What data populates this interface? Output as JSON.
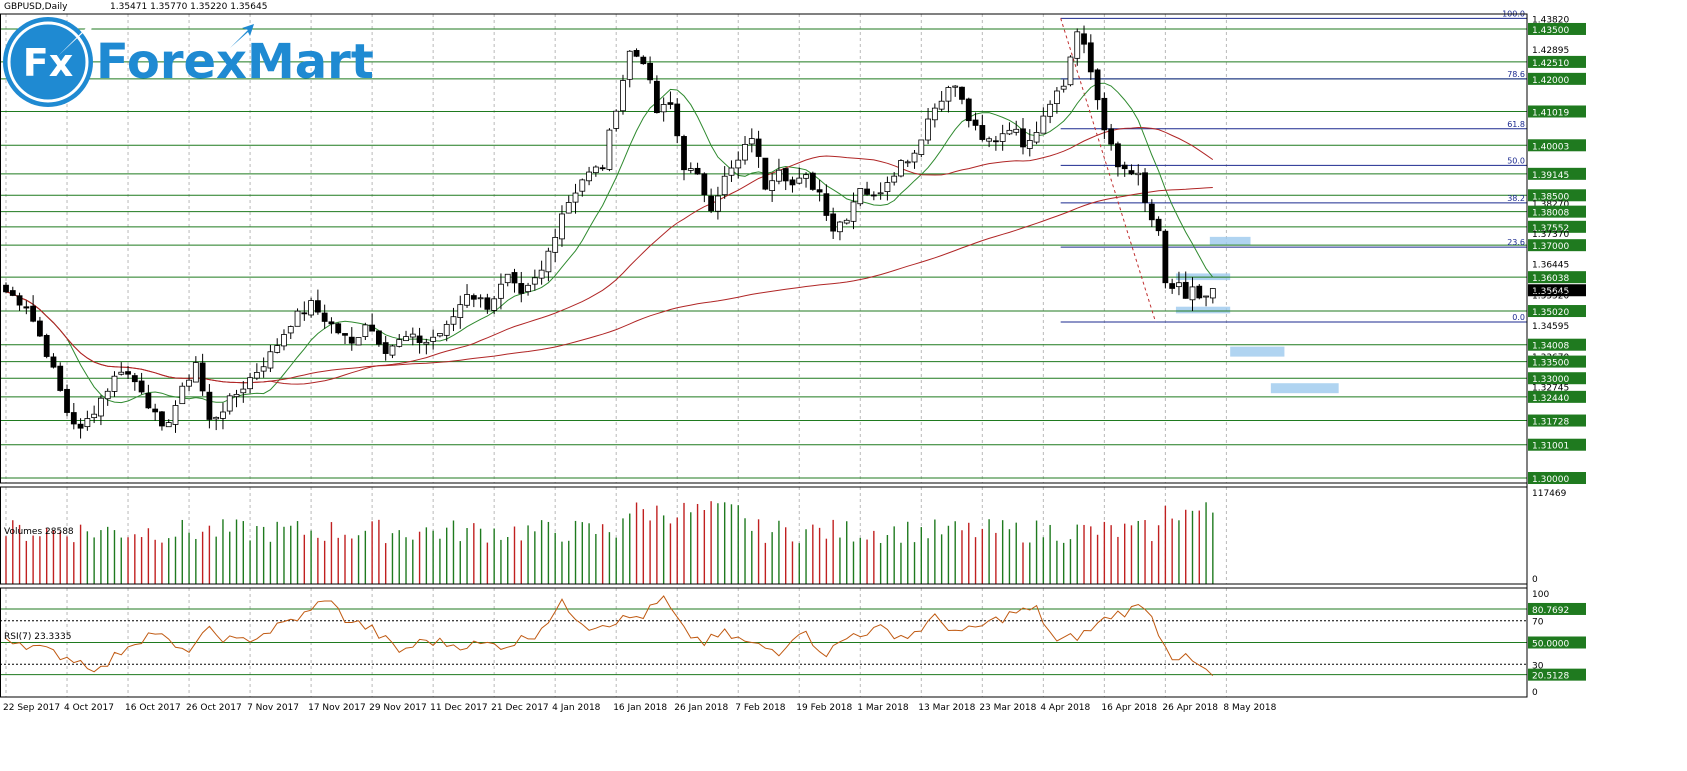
{
  "header": {
    "symbol": "GBPUSD,Daily",
    "ohlc": "1.35471 1.35770 1.35220 1.35645"
  },
  "logo": {
    "text": "ForexMart",
    "badge": "Fx"
  },
  "colors": {
    "background": "#ffffff",
    "grid": "#b9b9b9",
    "candle": "#000000",
    "sr_line": "#1f7a1f",
    "fib": "#1b2a8f",
    "ma_fast": "#2f8a2f",
    "ma_slow": "#b02626",
    "vol_up": "#1f7a1f",
    "vol_down": "#c02020",
    "rsi": "#c05a12",
    "zone": "#9cc9ee",
    "brand": "#1f8ad2"
  },
  "chart_data": [
    {
      "type": "line",
      "title": "GBPUSD,Daily",
      "subtitle": "1.35471 1.35770 1.35220 1.35645",
      "ylim": [
        1.2985,
        1.4395
      ],
      "x_tick_labels": [
        "22 Sep 2017",
        "4 Oct 2017",
        "16 Oct 2017",
        "26 Oct 2017",
        "7 Nov 2017",
        "17 Nov 2017",
        "29 Nov 2017",
        "11 Dec 2017",
        "21 Dec 2017",
        "4 Jan 2018",
        "16 Jan 2018",
        "26 Jan 2018",
        "7 Feb 2018",
        "19 Feb 2018",
        "1 Mar 2018",
        "13 Mar 2018",
        "23 Mar 2018",
        "4 Apr 2018",
        "16 Apr 2018",
        "26 Apr 2018",
        "8 May 2018"
      ],
      "close_series_anchors": [
        [
          0,
          1.356
        ],
        [
          3,
          1.352
        ],
        [
          6,
          1.338
        ],
        [
          9,
          1.32
        ],
        [
          11,
          1.314
        ],
        [
          14,
          1.324
        ],
        [
          17,
          1.333
        ],
        [
          20,
          1.327
        ],
        [
          23,
          1.314
        ],
        [
          26,
          1.326
        ],
        [
          28,
          1.335
        ],
        [
          30,
          1.317
        ],
        [
          33,
          1.323
        ],
        [
          36,
          1.33
        ],
        [
          39,
          1.337
        ],
        [
          42,
          1.347
        ],
        [
          45,
          1.352
        ],
        [
          48,
          1.346
        ],
        [
          51,
          1.34
        ],
        [
          53,
          1.347
        ],
        [
          56,
          1.339
        ],
        [
          59,
          1.342
        ],
        [
          62,
          1.341
        ],
        [
          65,
          1.345
        ],
        [
          68,
          1.356
        ],
        [
          71,
          1.352
        ],
        [
          74,
          1.36
        ],
        [
          76,
          1.354
        ],
        [
          79,
          1.362
        ],
        [
          82,
          1.38
        ],
        [
          85,
          1.39
        ],
        [
          88,
          1.394
        ],
        [
          90,
          1.412
        ],
        [
          92,
          1.428
        ],
        [
          94,
          1.426
        ],
        [
          96,
          1.41
        ],
        [
          98,
          1.412
        ],
        [
          100,
          1.394
        ],
        [
          102,
          1.39
        ],
        [
          104,
          1.382
        ],
        [
          106,
          1.39
        ],
        [
          108,
          1.395
        ],
        [
          110,
          1.403
        ],
        [
          112,
          1.388
        ],
        [
          114,
          1.394
        ],
        [
          116,
          1.388
        ],
        [
          118,
          1.39
        ],
        [
          120,
          1.386
        ],
        [
          122,
          1.375
        ],
        [
          124,
          1.379
        ],
        [
          126,
          1.388
        ],
        [
          128,
          1.384
        ],
        [
          130,
          1.39
        ],
        [
          132,
          1.395
        ],
        [
          134,
          1.398
        ],
        [
          136,
          1.408
        ],
        [
          138,
          1.415
        ],
        [
          140,
          1.418
        ],
        [
          142,
          1.408
        ],
        [
          144,
          1.401
        ],
        [
          146,
          1.402
        ],
        [
          148,
          1.406
        ],
        [
          150,
          1.401
        ],
        [
          152,
          1.405
        ],
        [
          154,
          1.414
        ],
        [
          156,
          1.418
        ],
        [
          157,
          1.427
        ],
        [
          158,
          1.434
        ],
        [
          159,
          1.429
        ],
        [
          160,
          1.422
        ],
        [
          161,
          1.414
        ],
        [
          162,
          1.406
        ],
        [
          163,
          1.399
        ],
        [
          164,
          1.393
        ],
        [
          165,
          1.393
        ],
        [
          166,
          1.39
        ],
        [
          167,
          1.391
        ],
        [
          168,
          1.383
        ],
        [
          169,
          1.376
        ],
        [
          170,
          1.373
        ],
        [
          171,
          1.359
        ],
        [
          172,
          1.357
        ],
        [
          173,
          1.358
        ],
        [
          174,
          1.353
        ],
        [
          175,
          1.356
        ],
        [
          176,
          1.354
        ],
        [
          177,
          1.353
        ],
        [
          178,
          1.3565
        ]
      ],
      "horizontal_levels": [
        1.435,
        1.4251,
        1.42,
        1.41019,
        1.40003,
        1.39145,
        1.385,
        1.38008,
        1.37552,
        1.37,
        1.36038,
        1.3502,
        1.34008,
        1.335,
        1.33,
        1.3244,
        1.31728,
        1.31001,
        1.3
      ],
      "price_axis_labels": [
        "1.43820",
        "1.43500",
        "1.42895",
        "1.42510",
        "1.42000",
        "1.41019",
        "1.40003",
        "1.39145",
        "1.38500",
        "1.38270",
        "1.38008",
        "1.37552",
        "1.37370",
        "1.37000",
        "1.36445",
        "1.36038",
        "1.35645",
        "1.35520",
        "1.35020",
        "1.34595",
        "1.34008",
        "1.33670",
        "1.33500",
        "1.33000",
        "1.32745",
        "1.32440",
        "1.31728",
        "1.31001",
        "1.30000"
      ],
      "highlighted_labels": [
        "1.43500",
        "1.42510",
        "1.42000",
        "1.41019",
        "1.40003",
        "1.39145",
        "1.38500",
        "1.38008",
        "1.37552",
        "1.37000",
        "1.36038",
        "1.35020",
        "1.34008",
        "1.33500",
        "1.33000",
        "1.32440",
        "1.31728",
        "1.31001",
        "1.30000"
      ],
      "current_price_label": "1.35645",
      "fibonacci": {
        "levels": [
          {
            "label": "100.0",
            "price": 1.4382
          },
          {
            "label": "78.6",
            "price": 1.42
          },
          {
            "label": "61.8",
            "price": 1.405
          },
          {
            "label": "50.0",
            "price": 1.394
          },
          {
            "label": "38.2",
            "price": 1.3827
          },
          {
            "label": "23.6",
            "price": 1.3694
          },
          {
            "label": "0.0",
            "price": 1.3469
          }
        ]
      }
    },
    {
      "type": "bar",
      "title": "Volumes 28588",
      "ylim": [
        0,
        117469
      ],
      "axis_labels": [
        "117469",
        "0"
      ]
    },
    {
      "type": "line",
      "title": "RSI(7) 23.3335",
      "ylim": [
        0,
        100
      ],
      "levels": [
        {
          "label": "80.7692",
          "value": 80.77,
          "highlighted": true
        },
        {
          "label": "70",
          "value": 70,
          "highlighted": false
        },
        {
          "label": "50.0000",
          "value": 50,
          "highlighted": true
        },
        {
          "label": "30",
          "value": 30,
          "highlighted": false
        },
        {
          "label": "20.5128",
          "value": 20.51,
          "highlighted": true
        },
        {
          "label": "100",
          "value": 100,
          "highlighted": false
        },
        {
          "label": "0",
          "value": 0,
          "highlighted": false
        }
      ],
      "rsi_anchors": [
        [
          0,
          55
        ],
        [
          6,
          42
        ],
        [
          10,
          35
        ],
        [
          14,
          25
        ],
        [
          18,
          48
        ],
        [
          22,
          60
        ],
        [
          26,
          40
        ],
        [
          30,
          60
        ],
        [
          34,
          50
        ],
        [
          38,
          58
        ],
        [
          42,
          70
        ],
        [
          45,
          78
        ],
        [
          47,
          92
        ],
        [
          50,
          72
        ],
        [
          54,
          62
        ],
        [
          58,
          42
        ],
        [
          62,
          52
        ],
        [
          66,
          48
        ],
        [
          70,
          48
        ],
        [
          74,
          48
        ],
        [
          78,
          58
        ],
        [
          82,
          85
        ],
        [
          86,
          65
        ],
        [
          90,
          70
        ],
        [
          94,
          75
        ],
        [
          97,
          90
        ],
        [
          100,
          60
        ],
        [
          103,
          50
        ],
        [
          106,
          58
        ],
        [
          110,
          48
        ],
        [
          114,
          42
        ],
        [
          117,
          62
        ],
        [
          121,
          40
        ],
        [
          125,
          58
        ],
        [
          129,
          62
        ],
        [
          133,
          55
        ],
        [
          137,
          72
        ],
        [
          141,
          58
        ],
        [
          145,
          68
        ],
        [
          149,
          78
        ],
        [
          152,
          80
        ],
        [
          155,
          50
        ],
        [
          159,
          58
        ],
        [
          163,
          75
        ],
        [
          166,
          80
        ],
        [
          168,
          85
        ],
        [
          170,
          60
        ],
        [
          172,
          38
        ],
        [
          174,
          35
        ],
        [
          176,
          28
        ],
        [
          178,
          18
        ],
        [
          180,
          15
        ],
        [
          182,
          15
        ],
        [
          184,
          20
        ],
        [
          186,
          22
        ],
        [
          188,
          23
        ]
      ]
    }
  ]
}
